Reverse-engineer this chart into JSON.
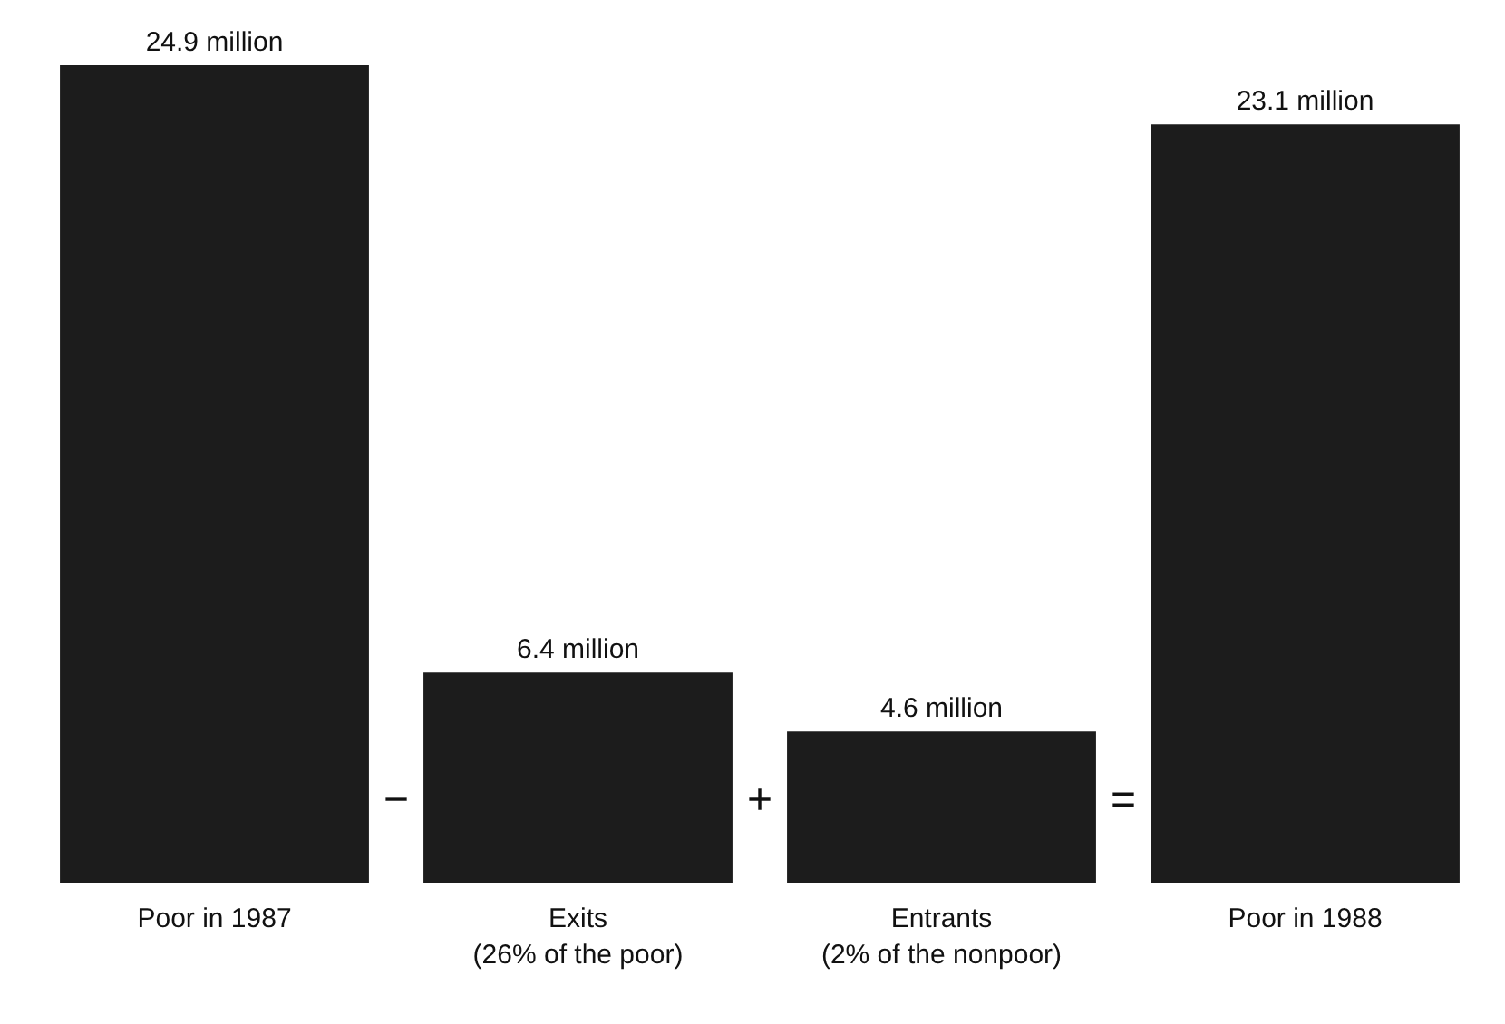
{
  "chart_data": {
    "type": "bar",
    "categories": [
      "Poor in 1987",
      "Exits\n(26% of the poor)",
      "Entrants\n(2% of the nonpoor)",
      "Poor in 1988"
    ],
    "values": [
      24.9,
      6.4,
      4.6,
      23.1
    ],
    "value_labels": [
      "24.9 million",
      "6.4 million",
      "4.6 million",
      "23.1 million"
    ],
    "color": "#1c1c1c",
    "annotations": [
      "−",
      "+",
      "="
    ]
  }
}
